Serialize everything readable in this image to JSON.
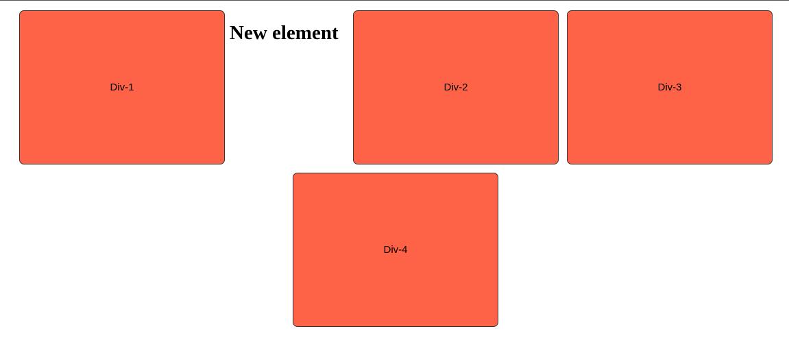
{
  "colors": {
    "box_fill": "#ff6347",
    "box_border": "#333333",
    "text": "#000000"
  },
  "heading": {
    "text": "New element"
  },
  "boxes": [
    {
      "label": "Div-1"
    },
    {
      "label": "Div-2"
    },
    {
      "label": "Div-3"
    },
    {
      "label": "Div-4"
    }
  ]
}
